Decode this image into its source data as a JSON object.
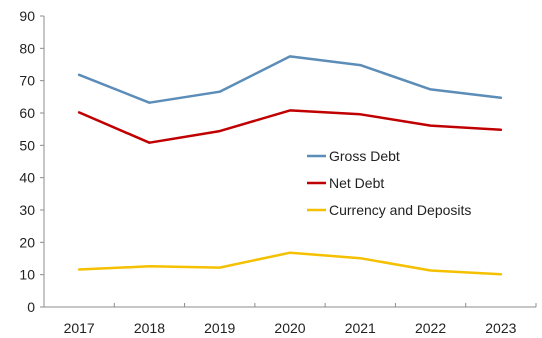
{
  "chart_data": {
    "type": "line",
    "categories": [
      "2017",
      "2018",
      "2019",
      "2020",
      "2021",
      "2022",
      "2023"
    ],
    "ylim": [
      0,
      90
    ],
    "yticks": [
      0,
      10,
      20,
      30,
      40,
      50,
      60,
      70,
      80,
      90
    ],
    "grid": false,
    "legend_position": "center-right",
    "series": [
      {
        "name": "Gross Debt",
        "color": "#5b8db8",
        "values": [
          71.8,
          63.2,
          66.6,
          77.5,
          74.8,
          67.3,
          64.7
        ]
      },
      {
        "name": "Net Debt",
        "color": "#c00000",
        "values": [
          60.2,
          50.8,
          54.4,
          60.8,
          59.6,
          56.1,
          54.8
        ]
      },
      {
        "name": "Currency and Deposits",
        "color": "#f5c000",
        "values": [
          11.6,
          12.6,
          12.2,
          16.8,
          15.1,
          11.3,
          10.1
        ]
      }
    ]
  }
}
